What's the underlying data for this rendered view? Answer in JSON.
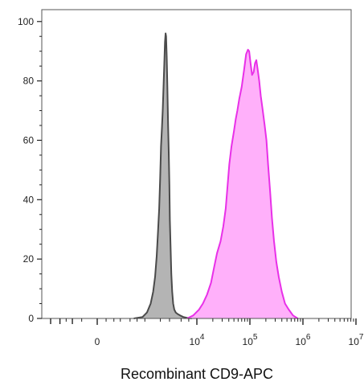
{
  "chart_data": {
    "type": "area",
    "title": "",
    "xlabel": "Recombinant CD9-APC",
    "ylabel": "",
    "x_scale": "biexponential",
    "xlim": [
      -1500,
      10000000
    ],
    "ylim": [
      0,
      104
    ],
    "y_ticks": [
      0,
      20,
      40,
      60,
      80,
      100
    ],
    "x_ticks": [
      {
        "value": 0,
        "base": "0",
        "exp": ""
      },
      {
        "value": 10000,
        "base": "10",
        "exp": "4"
      },
      {
        "value": 100000,
        "base": "10",
        "exp": "5"
      },
      {
        "value": 1000000,
        "base": "10",
        "exp": "6"
      },
      {
        "value": 10000000,
        "base": "10",
        "exp": "7"
      }
    ],
    "grid": false,
    "legend": "none",
    "series": [
      {
        "fill": "#b4b4b4",
        "stroke": "#4a4a4a",
        "points": [
          [
            600,
            0
          ],
          [
            900,
            0.5
          ],
          [
            1100,
            2
          ],
          [
            1300,
            5
          ],
          [
            1450,
            9
          ],
          [
            1580,
            14
          ],
          [
            1700,
            21
          ],
          [
            1800,
            29
          ],
          [
            1900,
            37
          ],
          [
            1980,
            47
          ],
          [
            2060,
            58
          ],
          [
            2140,
            64
          ],
          [
            2220,
            70
          ],
          [
            2300,
            78
          ],
          [
            2380,
            86
          ],
          [
            2450,
            93
          ],
          [
            2520,
            96
          ],
          [
            2580,
            95
          ],
          [
            2650,
            88
          ],
          [
            2730,
            78
          ],
          [
            2820,
            65
          ],
          [
            2900,
            56
          ],
          [
            2980,
            45
          ],
          [
            3050,
            33
          ],
          [
            3150,
            23
          ],
          [
            3250,
            15
          ],
          [
            3380,
            9
          ],
          [
            3520,
            5
          ],
          [
            3700,
            3
          ],
          [
            3950,
            2
          ],
          [
            4300,
            1.5
          ],
          [
            4800,
            1
          ],
          [
            5500,
            0.5
          ],
          [
            6600,
            0.2
          ],
          [
            8000,
            0
          ]
        ]
      },
      {
        "fill": "#ffb0fa",
        "stroke": "#e830e8",
        "points": [
          [
            6500,
            0
          ],
          [
            8500,
            1
          ],
          [
            11000,
            3
          ],
          [
            13000,
            5
          ],
          [
            15500,
            8
          ],
          [
            18500,
            12
          ],
          [
            21000,
            17
          ],
          [
            24000,
            22
          ],
          [
            28000,
            26
          ],
          [
            31500,
            31
          ],
          [
            35000,
            37
          ],
          [
            38000,
            45
          ],
          [
            41000,
            52
          ],
          [
            45000,
            58
          ],
          [
            50000,
            63
          ],
          [
            54000,
            67
          ],
          [
            58000,
            70
          ],
          [
            63000,
            74
          ],
          [
            70000,
            78
          ],
          [
            78000,
            84
          ],
          [
            85000,
            89
          ],
          [
            92000,
            90.5
          ],
          [
            97000,
            90
          ],
          [
            103000,
            86
          ],
          [
            110000,
            82
          ],
          [
            118000,
            83
          ],
          [
            125000,
            86
          ],
          [
            132000,
            87
          ],
          [
            140000,
            84
          ],
          [
            150000,
            80
          ],
          [
            160000,
            75
          ],
          [
            175000,
            70
          ],
          [
            190000,
            65
          ],
          [
            205000,
            60
          ],
          [
            220000,
            52
          ],
          [
            240000,
            43
          ],
          [
            260000,
            34
          ],
          [
            285000,
            26
          ],
          [
            315000,
            19
          ],
          [
            350000,
            14
          ],
          [
            400000,
            9
          ],
          [
            460000,
            5
          ],
          [
            540000,
            3
          ],
          [
            650000,
            1
          ],
          [
            800000,
            0
          ]
        ]
      }
    ]
  }
}
